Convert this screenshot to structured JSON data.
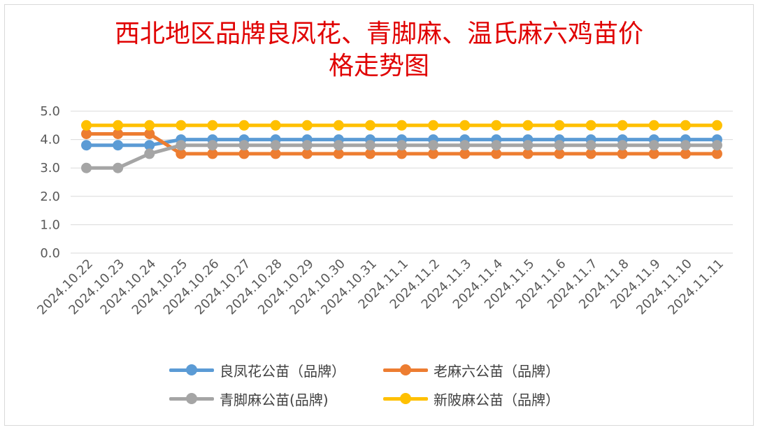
{
  "chart_data": {
    "type": "line",
    "title_line1": "西北地区品牌良凤花、青脚麻、温氏麻六鸡苗价",
    "title_line2": "格走势图",
    "categories": [
      "2024.10.22",
      "2024.10.23",
      "2024.10.24",
      "2024.10.25",
      "2024.10.26",
      "2024.10.27",
      "2024.10.28",
      "2024.10.29",
      "2024.10.30",
      "2024.10.31",
      "2024.11.1",
      "2024.11.2",
      "2024.11.3",
      "2024.11.4",
      "2024.11.5",
      "2024.11.6",
      "2024.11.7",
      "2024.11.8",
      "2024.11.9",
      "2024.11.10",
      "2024.11.11"
    ],
    "y_ticks": [
      "0.0",
      "1.0",
      "2.0",
      "3.0",
      "4.0",
      "5.0"
    ],
    "ylim": [
      0,
      5
    ],
    "grid": true,
    "legend_position": "bottom",
    "series": [
      {
        "name": "良凤花公苗（品牌）",
        "color": "#5b9bd5",
        "values": [
          3.8,
          3.8,
          3.8,
          4.0,
          4.0,
          4.0,
          4.0,
          4.0,
          4.0,
          4.0,
          4.0,
          4.0,
          4.0,
          4.0,
          4.0,
          4.0,
          4.0,
          4.0,
          4.0,
          4.0,
          4.0
        ]
      },
      {
        "name": "老麻六公苗（品牌）",
        "color": "#ed7d31",
        "values": [
          4.2,
          4.2,
          4.2,
          3.5,
          3.5,
          3.5,
          3.5,
          3.5,
          3.5,
          3.5,
          3.5,
          3.5,
          3.5,
          3.5,
          3.5,
          3.5,
          3.5,
          3.5,
          3.5,
          3.5,
          3.5
        ]
      },
      {
        "name": "青脚麻公苗(品牌)",
        "color": "#a5a5a5",
        "values": [
          3.0,
          3.0,
          3.5,
          3.8,
          3.8,
          3.8,
          3.8,
          3.8,
          3.8,
          3.8,
          3.8,
          3.8,
          3.8,
          3.8,
          3.8,
          3.8,
          3.8,
          3.8,
          3.8,
          3.8,
          3.8
        ]
      },
      {
        "name": "新陂麻公苗（品牌）",
        "color": "#ffc000",
        "values": [
          4.5,
          4.5,
          4.5,
          4.5,
          4.5,
          4.5,
          4.5,
          4.5,
          4.5,
          4.5,
          4.5,
          4.5,
          4.5,
          4.5,
          4.5,
          4.5,
          4.5,
          4.5,
          4.5,
          4.5,
          4.5
        ]
      }
    ]
  }
}
